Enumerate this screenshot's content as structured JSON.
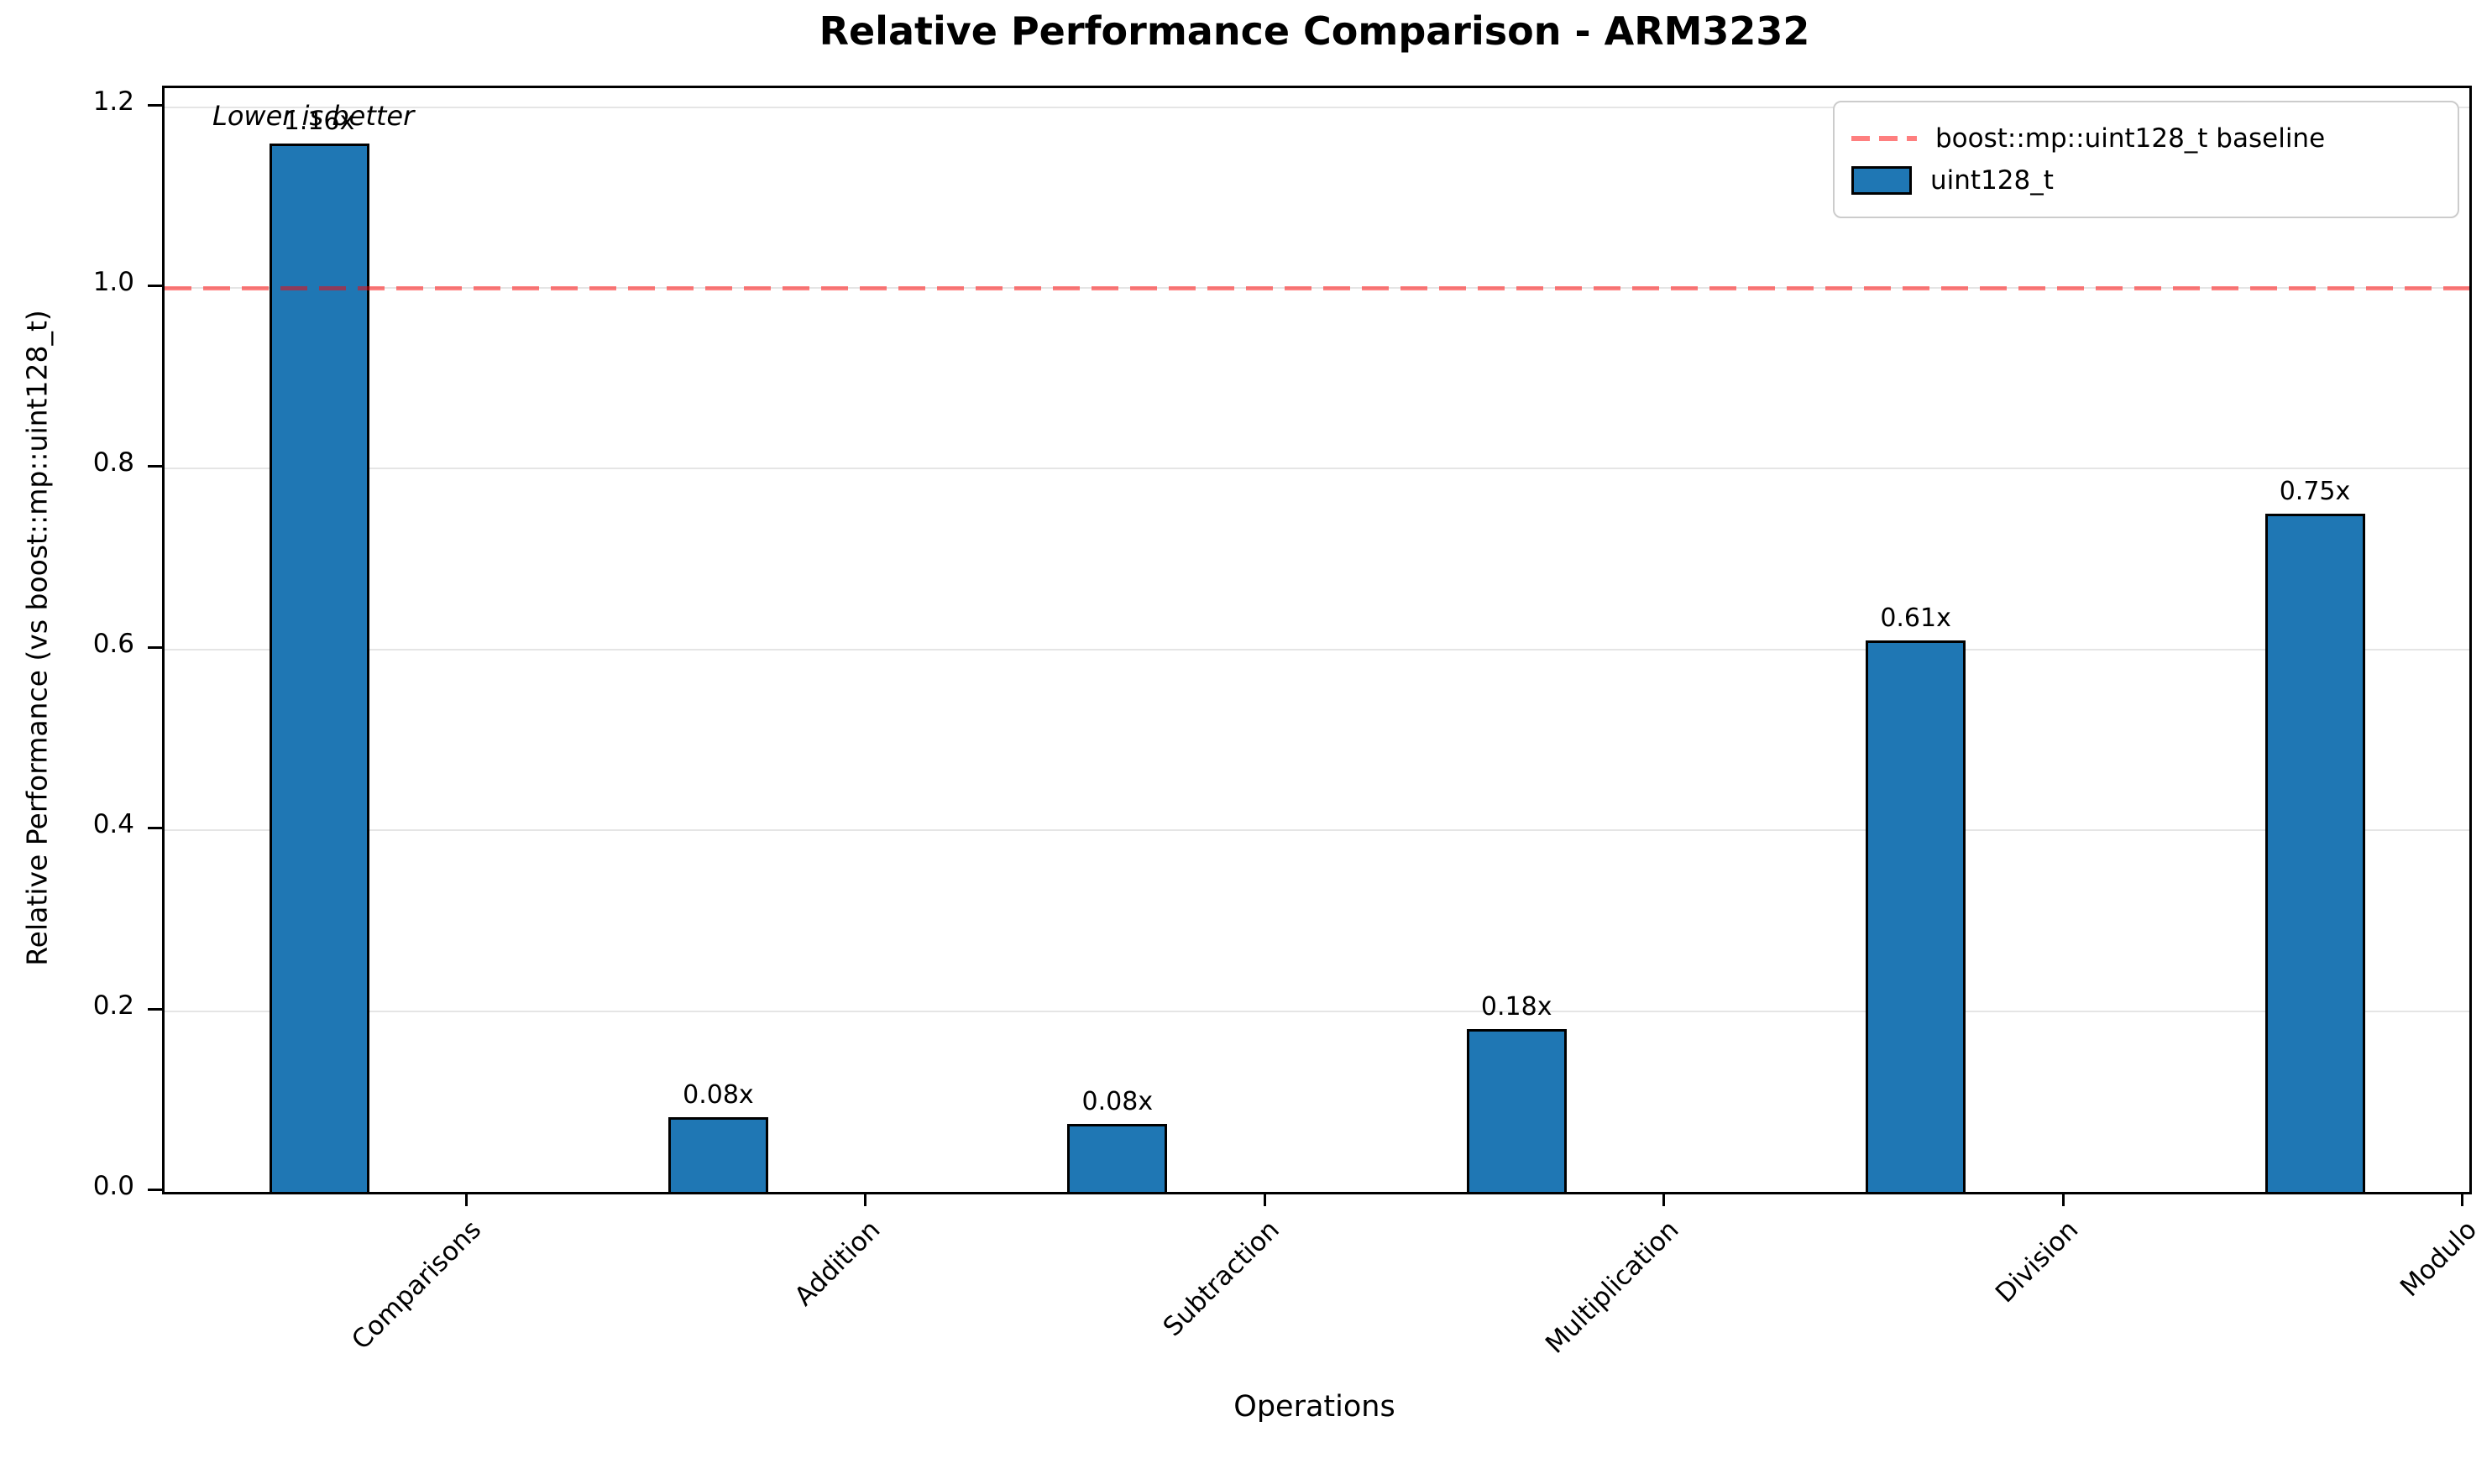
{
  "title": "Relative Performance Comparison - ARM3232",
  "annotation": "Lower is better",
  "legend": {
    "baseline_label": "boost::mp::uint128_t baseline",
    "series_label": "uint128_t"
  },
  "chart_data": {
    "type": "bar",
    "title": "Relative Performance Comparison - ARM3232",
    "xlabel": "Operations",
    "ylabel": "Relative Performance (vs boost::mp::uint128_t)",
    "categories": [
      "Comparisons",
      "Addition",
      "Subtraction",
      "Multiplication",
      "Division",
      "Modulo"
    ],
    "series": [
      {
        "name": "uint128_t",
        "values": [
          1.16,
          0.083,
          0.075,
          0.18,
          0.61,
          0.75
        ],
        "bar_labels": [
          "1.16x",
          "0.08x",
          "0.08x",
          "0.18x",
          "0.61x",
          "0.75x"
        ]
      }
    ],
    "baseline": {
      "value": 1.0,
      "label": "boost::mp::uint128_t baseline"
    },
    "yticks": [
      0.0,
      0.2,
      0.4,
      0.6,
      0.8,
      1.0,
      1.2
    ],
    "ylim": [
      0,
      1.22
    ],
    "grid": true,
    "legend_position": "upper right",
    "annotation": "Lower is better",
    "colors": {
      "bar": "#1f77b4",
      "bar_edge": "#000000",
      "baseline": "#ff0000",
      "baseline_rendered": "#f08080",
      "grid": "#e5e5e5",
      "text": "#000000"
    }
  }
}
